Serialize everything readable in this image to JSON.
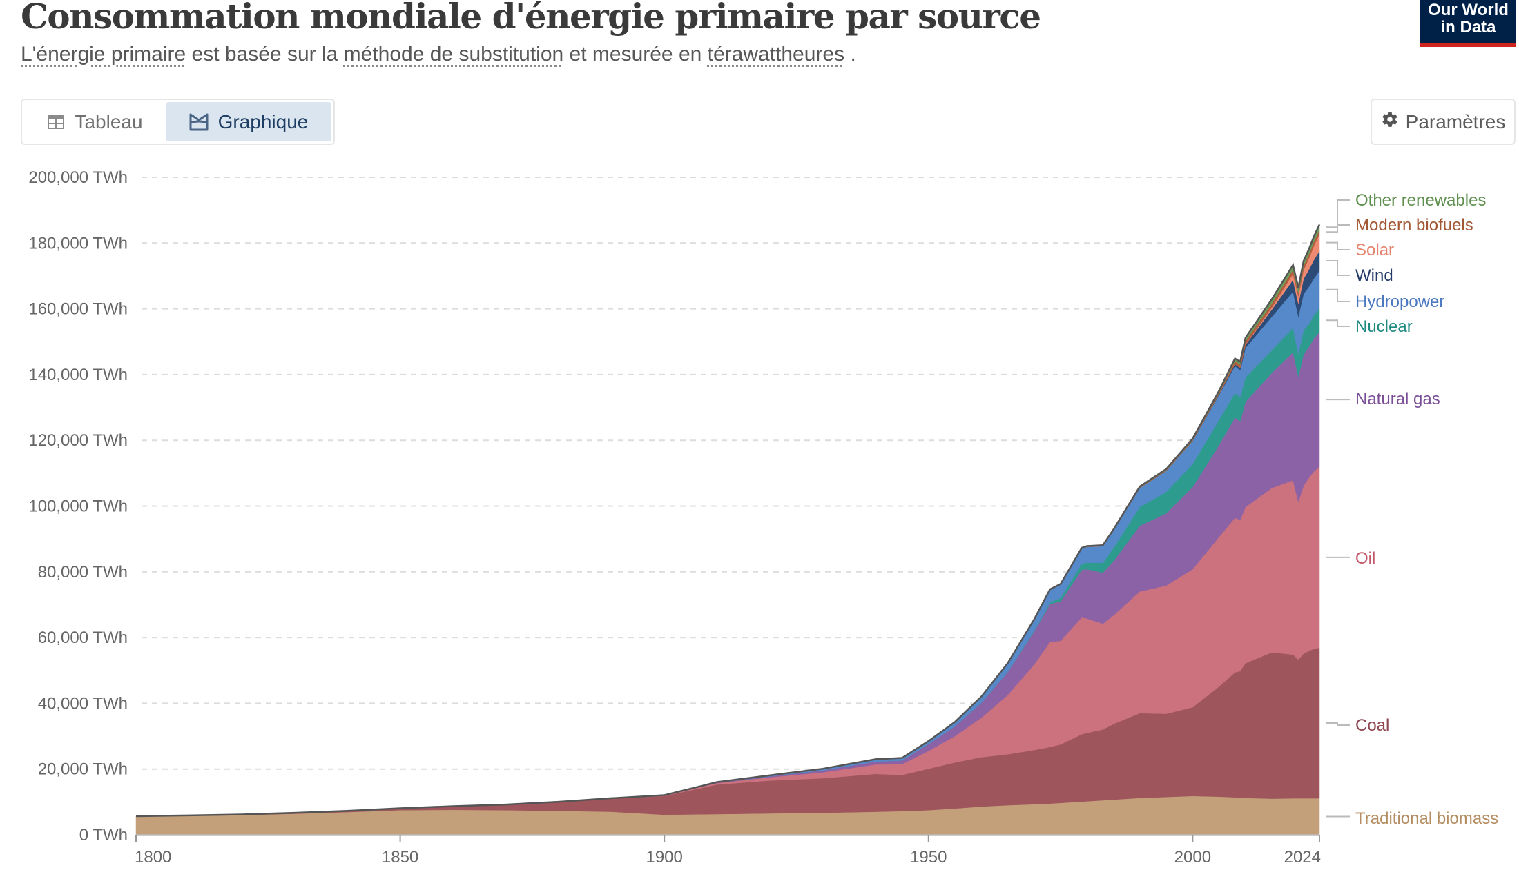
{
  "header": {
    "title": "Consommation mondiale d'énergie primaire par source",
    "subtitle_parts": [
      {
        "text": "L'énergie primaire",
        "term": true
      },
      {
        "text": " est basée sur la ",
        "term": false
      },
      {
        "text": "méthode de substitution",
        "term": true
      },
      {
        "text": " et mesurée en ",
        "term": false
      },
      {
        "text": "térawattheures",
        "term": true
      },
      {
        "text": " .",
        "term": false
      }
    ],
    "logo_line1": "Our World",
    "logo_line2": "in Data"
  },
  "tabs": [
    {
      "label": "Tableau",
      "icon": "table-icon",
      "active": false
    },
    {
      "label": "Graphique",
      "icon": "chart-icon",
      "active": true
    }
  ],
  "settings": {
    "label": "Paramètres",
    "icon": "gear-icon"
  },
  "colors": {
    "logo_bg": "#002147",
    "logo_accent": "#ce261e",
    "active_tab_bg": "#dbe5f0"
  },
  "chart_data": {
    "type": "area",
    "stacked": true,
    "title": "Consommation mondiale d'énergie primaire par source",
    "xlabel": "",
    "ylabel": "",
    "unit": "TWh",
    "xlim": [
      1800,
      2024
    ],
    "ylim": [
      0,
      200000
    ],
    "grid": true,
    "legend_placement": "right (inline labels)",
    "x_ticks": [
      "1800",
      "1850",
      "1900",
      "1950",
      "2000",
      "2024"
    ],
    "y_ticks": [
      "0 TWh",
      "20,000 TWh",
      "40,000 TWh",
      "60,000 TWh",
      "80,000 TWh",
      "100,000 TWh",
      "120,000 TWh",
      "140,000 TWh",
      "160,000 TWh",
      "180,000 TWh",
      "200,000 TWh"
    ],
    "x": [
      1800,
      1810,
      1820,
      1830,
      1840,
      1850,
      1860,
      1870,
      1880,
      1890,
      1900,
      1910,
      1920,
      1930,
      1940,
      1945,
      1950,
      1955,
      1960,
      1965,
      1970,
      1973,
      1975,
      1979,
      1980,
      1983,
      1985,
      1990,
      1995,
      2000,
      2005,
      2008,
      2009,
      2010,
      2015,
      2019,
      2020,
      2021,
      2022,
      2023,
      2024
    ],
    "series": [
      {
        "name": "Traditional biomass",
        "color": "#c4a07a",
        "values": [
          5560,
          5750,
          6000,
          6400,
          6900,
          7500,
          7600,
          7500,
          7300,
          7000,
          6100,
          6300,
          6500,
          6700,
          7000,
          7200,
          7500,
          8000,
          8600,
          9000,
          9300,
          9500,
          9700,
          10100,
          10200,
          10500,
          10700,
          11200,
          11500,
          11800,
          11600,
          11400,
          11300,
          11200,
          11000,
          11100,
          11100,
          11100,
          11100,
          11100,
          11100
        ]
      },
      {
        "name": "Coal",
        "color": "#9e555c",
        "values": [
          97,
          140,
          200,
          300,
          400,
          570,
          1100,
          1700,
          2700,
          4000,
          5700,
          9000,
          10000,
          10500,
          11500,
          11000,
          12600,
          14000,
          15000,
          15500,
          16500,
          17200,
          17800,
          20500,
          20800,
          21500,
          23000,
          25800,
          25300,
          27000,
          33500,
          38000,
          38500,
          41000,
          44500,
          43700,
          42200,
          44000,
          44800,
          45500,
          45800
        ]
      },
      {
        "name": "Oil",
        "color": "#cc717e",
        "values": [
          0,
          0,
          0,
          0,
          0,
          0,
          0,
          10,
          50,
          100,
          180,
          450,
          1000,
          1800,
          2900,
          3300,
          5400,
          8000,
          12000,
          18000,
          26000,
          32000,
          31500,
          35500,
          34800,
          32200,
          33000,
          37000,
          39000,
          42000,
          45500,
          47000,
          46000,
          47500,
          50000,
          53000,
          48000,
          51000,
          52700,
          54000,
          55000
        ]
      },
      {
        "name": "Natural gas",
        "color": "#8c62a6",
        "values": [
          0,
          0,
          0,
          0,
          0,
          0,
          0,
          0,
          0,
          30,
          60,
          150,
          300,
          600,
          900,
          1100,
          2100,
          3000,
          4500,
          7000,
          10000,
          11500,
          12000,
          14500,
          15000,
          15500,
          16500,
          20000,
          22000,
          25000,
          28000,
          30500,
          30000,
          32000,
          35000,
          39000,
          38000,
          40000,
          39800,
          40500,
          41000
        ]
      },
      {
        "name": "Nuclear",
        "color": "#2e9b8f",
        "values": [
          0,
          0,
          0,
          0,
          0,
          0,
          0,
          0,
          0,
          0,
          0,
          0,
          0,
          0,
          0,
          0,
          0,
          5,
          20,
          70,
          200,
          500,
          1000,
          1800,
          2000,
          3000,
          4000,
          5700,
          6500,
          7000,
          7600,
          7500,
          7300,
          7400,
          6900,
          7400,
          7000,
          7300,
          7000,
          7100,
          7200
        ]
      },
      {
        "name": "Hydropower",
        "color": "#5589c9",
        "values": [
          0,
          0,
          0,
          0,
          0,
          0,
          0,
          0,
          0,
          10,
          30,
          150,
          300,
          500,
          700,
          800,
          900,
          1300,
          1900,
          2600,
          3500,
          3900,
          4200,
          4700,
          4800,
          5100,
          5300,
          5800,
          6400,
          7000,
          7600,
          8200,
          8200,
          9000,
          10200,
          11000,
          11300,
          11100,
          11300,
          11100,
          11500
        ]
      },
      {
        "name": "Wind",
        "color": "#2c4b77",
        "values": [
          0,
          0,
          0,
          0,
          0,
          0,
          0,
          0,
          0,
          0,
          0,
          0,
          0,
          0,
          0,
          0,
          0,
          0,
          0,
          0,
          0,
          0,
          0,
          0,
          0,
          0,
          5,
          10,
          20,
          80,
          270,
          570,
          690,
          900,
          2200,
          3600,
          4000,
          4600,
          5200,
          5700,
          6000
        ]
      },
      {
        "name": "Solar",
        "color": "#ee8a72",
        "values": [
          0,
          0,
          0,
          0,
          0,
          0,
          0,
          0,
          0,
          0,
          0,
          0,
          0,
          0,
          0,
          0,
          0,
          0,
          0,
          0,
          0,
          0,
          0,
          0,
          0,
          0,
          0,
          0,
          1,
          3,
          10,
          30,
          55,
          80,
          650,
          1800,
          2200,
          2700,
          3400,
          4300,
          5100
        ]
      },
      {
        "name": "Modern biofuels",
        "color": "#b25f3f",
        "values": [
          0,
          0,
          0,
          0,
          0,
          0,
          0,
          0,
          0,
          0,
          0,
          0,
          0,
          0,
          0,
          0,
          0,
          0,
          0,
          0,
          0,
          0,
          10,
          60,
          70,
          110,
          140,
          160,
          170,
          200,
          400,
          900,
          1000,
          1100,
          1200,
          1300,
          1200,
          1250,
          1300,
          1330,
          1350
        ]
      },
      {
        "name": "Other renewables",
        "color": "#6a9e5b",
        "values": [
          0,
          0,
          0,
          0,
          0,
          0,
          0,
          0,
          0,
          0,
          0,
          0,
          0,
          0,
          0,
          0,
          10,
          20,
          30,
          50,
          70,
          90,
          100,
          150,
          160,
          200,
          230,
          300,
          380,
          480,
          600,
          800,
          850,
          1000,
          1300,
          1450,
          1450,
          1500,
          1530,
          1570,
          1600
        ]
      }
    ],
    "labels": [
      {
        "name": "Other renewables",
        "color": "#5e8f4e"
      },
      {
        "name": "Modern biofuels",
        "color": "#a35834"
      },
      {
        "name": "Solar",
        "color": "#e4836e"
      },
      {
        "name": "Wind",
        "color": "#233b66"
      },
      {
        "name": "Hydropower",
        "color": "#4b78c0"
      },
      {
        "name": "Nuclear",
        "color": "#1f8a80"
      },
      {
        "name": "Natural gas",
        "color": "#7b4f97"
      },
      {
        "name": "Oil",
        "color": "#c2586a"
      },
      {
        "name": "Coal",
        "color": "#8e4650"
      },
      {
        "name": "Traditional biomass",
        "color": "#b48d62"
      }
    ]
  }
}
